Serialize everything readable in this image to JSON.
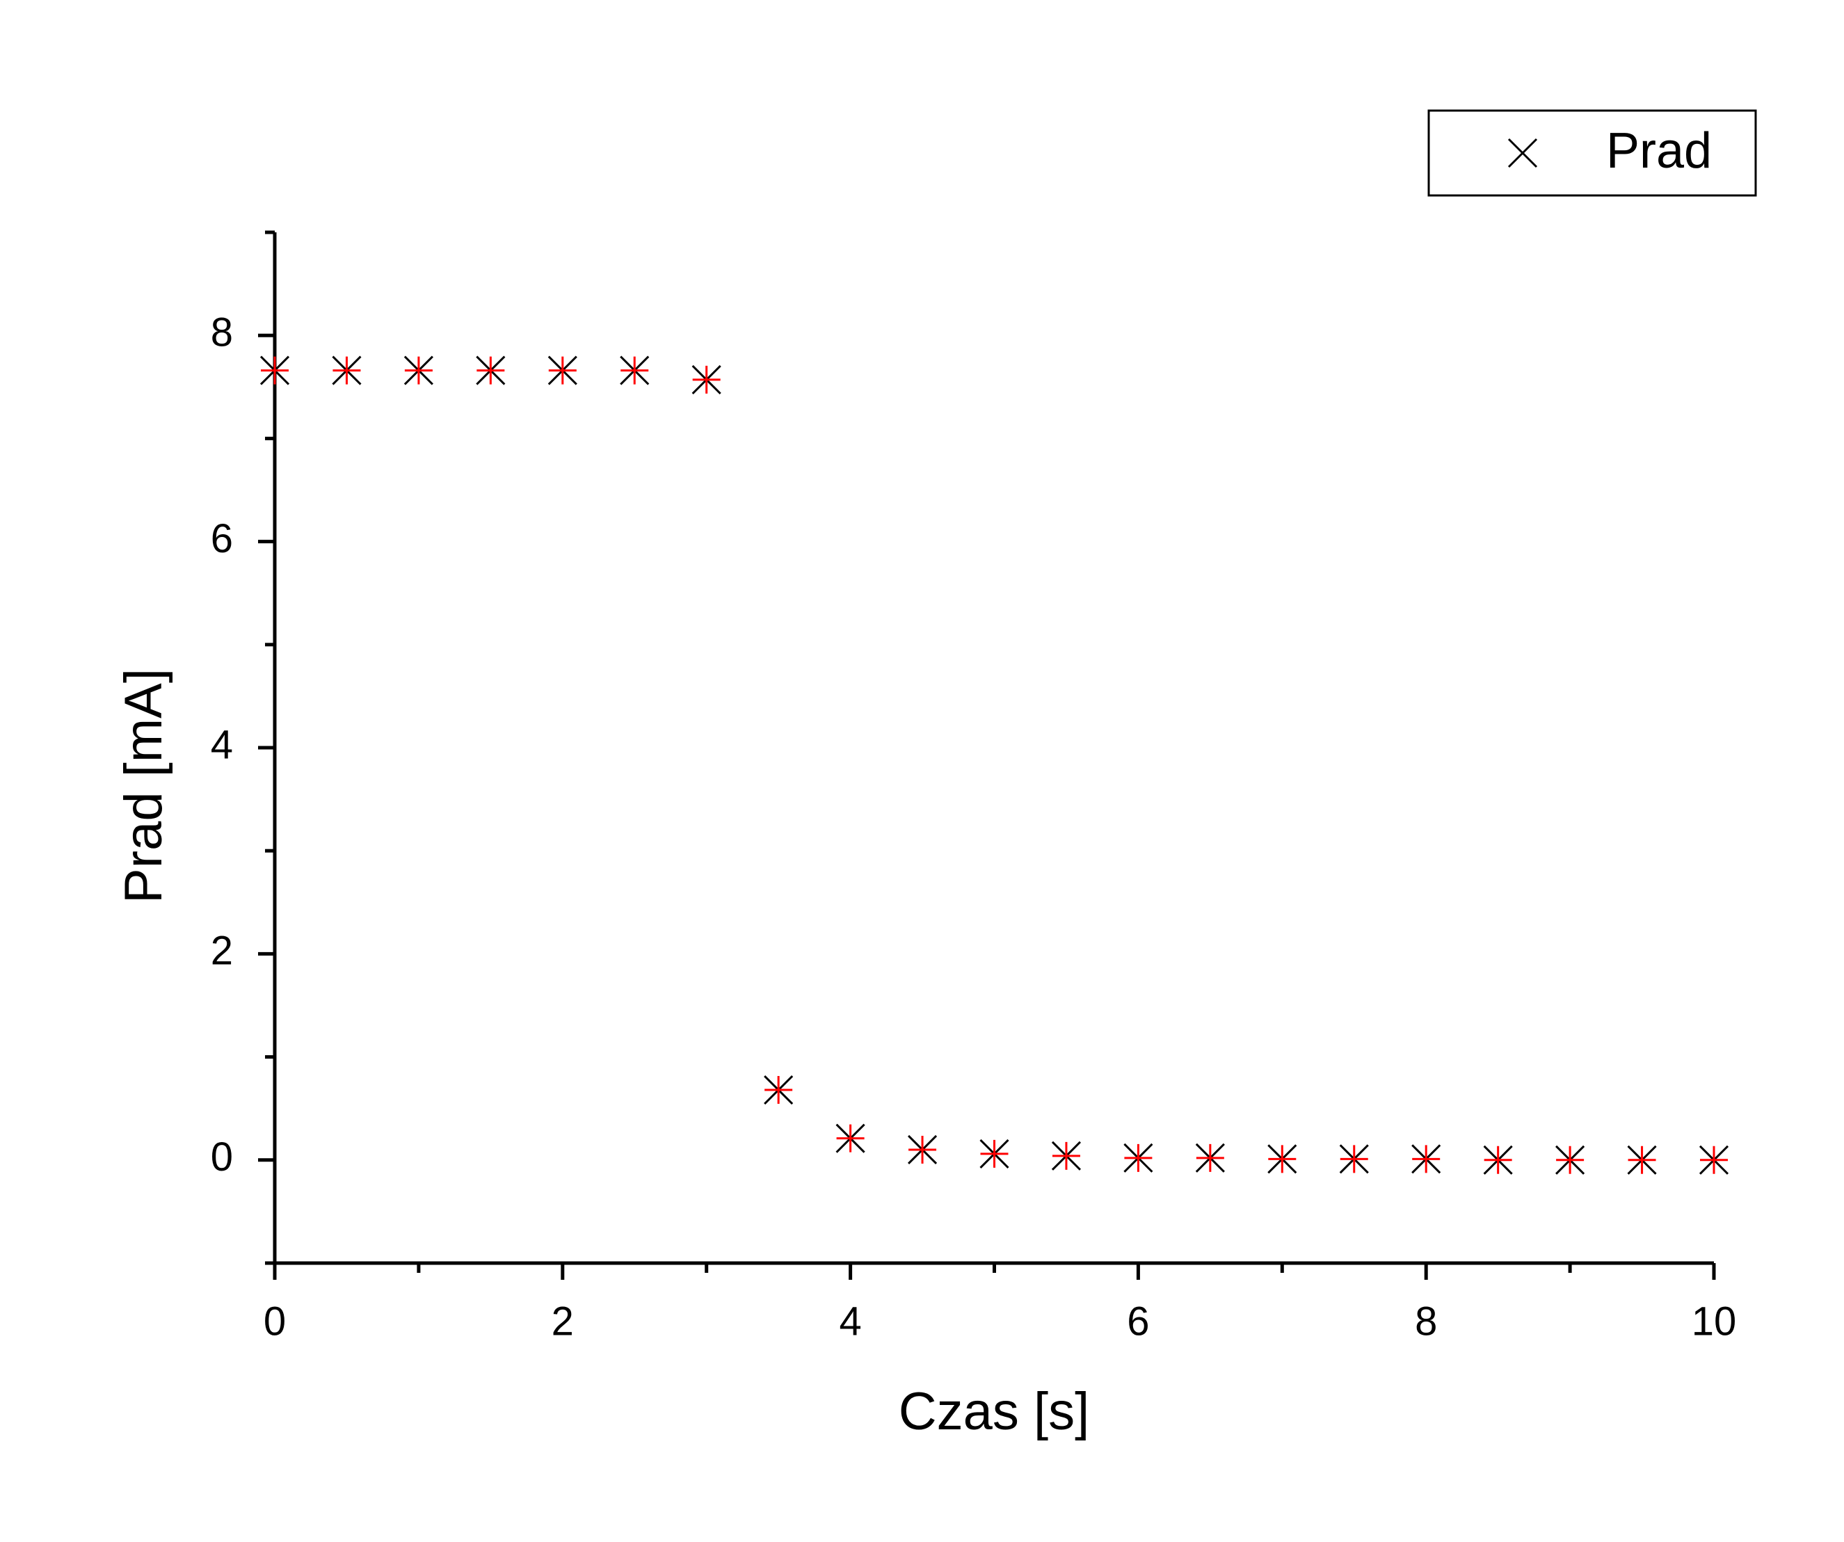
{
  "chart_data": {
    "type": "scatter",
    "x_label": "Czas [s]",
    "y_label": "Prad [mA]",
    "x": [
      0,
      0.5,
      1,
      1.5,
      2,
      2.5,
      3,
      3.5,
      4,
      4.5,
      5,
      5.5,
      6,
      6.5,
      7,
      7.5,
      8,
      8.5,
      9,
      9.5,
      10
    ],
    "series": [
      {
        "name": "Prad",
        "color": "#000000",
        "accent_color": "#ff0000",
        "values": [
          7.66,
          7.66,
          7.66,
          7.66,
          7.66,
          7.66,
          7.57,
          0.68,
          0.21,
          0.1,
          0.06,
          0.04,
          0.02,
          0.02,
          0.01,
          0.01,
          0.01,
          0,
          0,
          0,
          0
        ]
      }
    ],
    "xlim": [
      0,
      10
    ],
    "xticks": [
      0,
      2,
      4,
      6,
      8,
      10
    ],
    "ylim": [
      -1,
      9
    ],
    "yticks": [
      0,
      2,
      4,
      6,
      8
    ],
    "grid": false,
    "legend": "upper right"
  }
}
